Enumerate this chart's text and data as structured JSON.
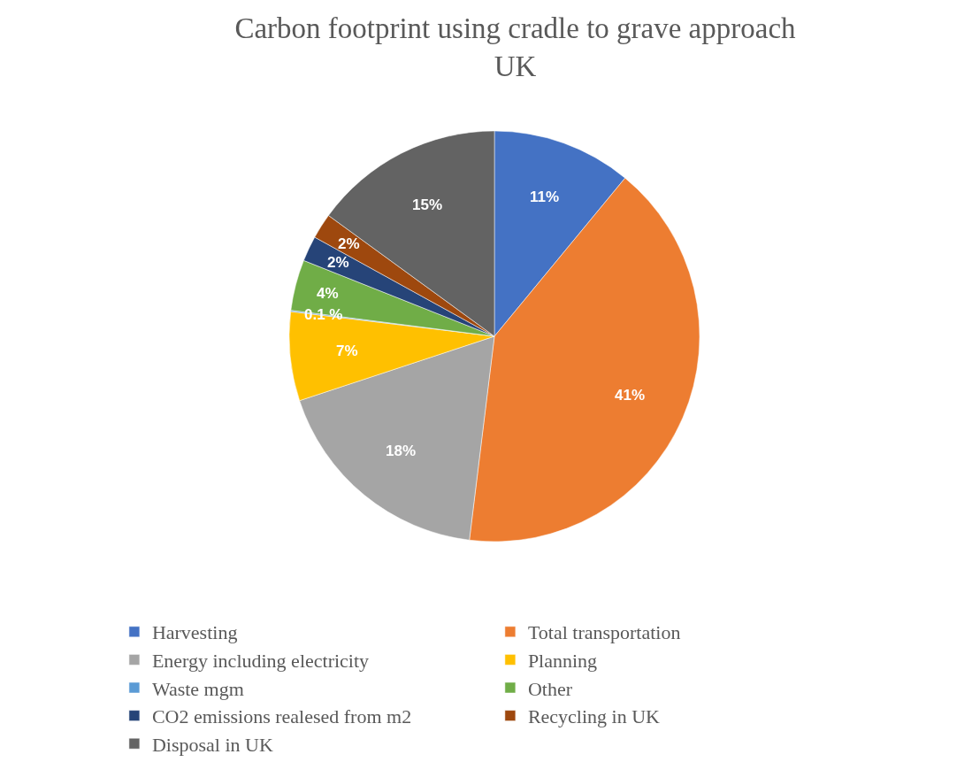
{
  "chart_data": {
    "type": "pie",
    "title": "Carbon footprint using cradle to grave approach\nUK",
    "categories": [
      "Harvesting",
      "Total transportation",
      "Energy including electricity",
      "Planning",
      "Waste mgm",
      "Other",
      "CO2 emissions realesed from m2",
      "Recycling in UK",
      "Disposal in UK"
    ],
    "values": [
      11,
      41,
      18,
      7,
      0.1,
      4,
      2,
      2,
      15
    ],
    "value_labels": [
      "11%",
      "41%",
      "18%",
      "7%",
      "0.1 %",
      "4%",
      "2%",
      "2%",
      "15%"
    ],
    "colors": [
      "#4472c4",
      "#ed7d31",
      "#a5a5a5",
      "#ffc000",
      "#5b9bd5",
      "#70ad47",
      "#264478",
      "#9e480e",
      "#636363"
    ],
    "legend": "bottom"
  }
}
